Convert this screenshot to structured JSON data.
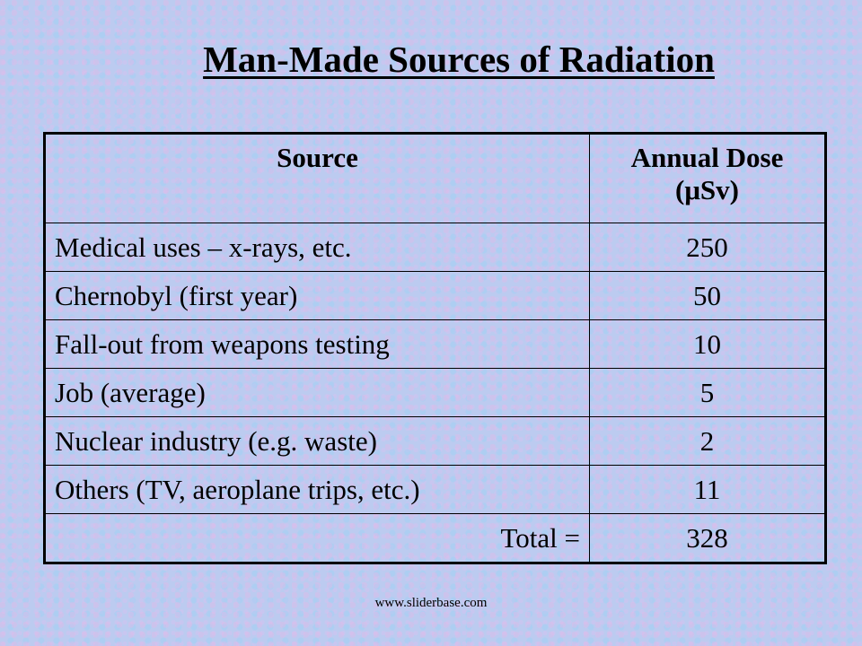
{
  "title": "Man-Made Sources of Radiation",
  "table": {
    "headers": [
      "Source",
      "Annual Dose",
      "(μSv)"
    ],
    "rows": [
      {
        "source": "Medical uses – x-rays, etc.",
        "dose": "250"
      },
      {
        "source": "Chernobyl (first year)",
        "dose": "50"
      },
      {
        "source": "Fall-out from weapons testing",
        "dose": "10"
      },
      {
        "source": "Job (average)",
        "dose": "5"
      },
      {
        "source": "Nuclear industry (e.g. waste)",
        "dose": "2"
      },
      {
        "source": "Others (TV, aeroplane trips, etc.)",
        "dose": "11"
      }
    ],
    "total_label": "Total =",
    "total_value": "328"
  },
  "footer": "www.sliderbase.com"
}
